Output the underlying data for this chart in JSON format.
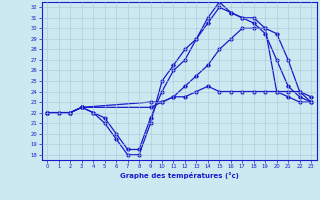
{
  "xlabel": "Graphe des températures (°c)",
  "background_color": "#cce8f0",
  "line_color": "#1a1acc",
  "grid_color": "#a8c8d8",
  "xlim": [
    -0.5,
    23.5
  ],
  "ylim": [
    17.5,
    32.5
  ],
  "yticks": [
    18,
    19,
    20,
    21,
    22,
    23,
    24,
    25,
    26,
    27,
    28,
    29,
    30,
    31,
    32
  ],
  "xticks": [
    0,
    1,
    2,
    3,
    4,
    5,
    6,
    7,
    8,
    9,
    10,
    11,
    12,
    13,
    14,
    15,
    16,
    17,
    18,
    19,
    20,
    21,
    22,
    23
  ],
  "series": [
    {
      "x": [
        0,
        1,
        2,
        3,
        4,
        5,
        6,
        7,
        8,
        9,
        10,
        11,
        12,
        13,
        14,
        15,
        16,
        17,
        18,
        19,
        20,
        21,
        22,
        23
      ],
      "y": [
        22,
        22,
        22,
        22.5,
        22,
        21,
        19.5,
        18,
        18,
        21,
        25,
        26.5,
        28,
        29,
        30.5,
        32,
        31.5,
        31,
        30.5,
        29.5,
        27,
        24.5,
        23.5,
        23
      ]
    },
    {
      "x": [
        0,
        1,
        2,
        3,
        4,
        5,
        6,
        7,
        8,
        9,
        10,
        11,
        12,
        13,
        14,
        15,
        16,
        17,
        18,
        19,
        20,
        21,
        22,
        23
      ],
      "y": [
        22,
        22,
        22,
        22.5,
        22,
        21.5,
        20,
        18.5,
        18.5,
        21.5,
        24,
        26,
        27,
        29,
        31,
        32.5,
        31.5,
        31,
        31,
        30,
        24,
        23.5,
        23,
        23
      ]
    },
    {
      "x": [
        0,
        2,
        3,
        9,
        10,
        11,
        12,
        13,
        14,
        15,
        16,
        17,
        18,
        19,
        20,
        21,
        22,
        23
      ],
      "y": [
        22,
        22,
        22.5,
        23,
        23,
        23.5,
        23.5,
        24,
        24.5,
        24,
        24,
        24,
        24,
        24,
        24,
        24,
        24,
        23.5
      ]
    },
    {
      "x": [
        0,
        2,
        3,
        9,
        10,
        11,
        12,
        13,
        14,
        15,
        16,
        17,
        18,
        19,
        20,
        21,
        22,
        23
      ],
      "y": [
        22,
        22,
        22.5,
        22.5,
        23,
        23.5,
        24.5,
        25.5,
        26.5,
        28,
        29,
        30,
        30,
        30,
        29.5,
        27,
        24,
        23
      ]
    }
  ]
}
